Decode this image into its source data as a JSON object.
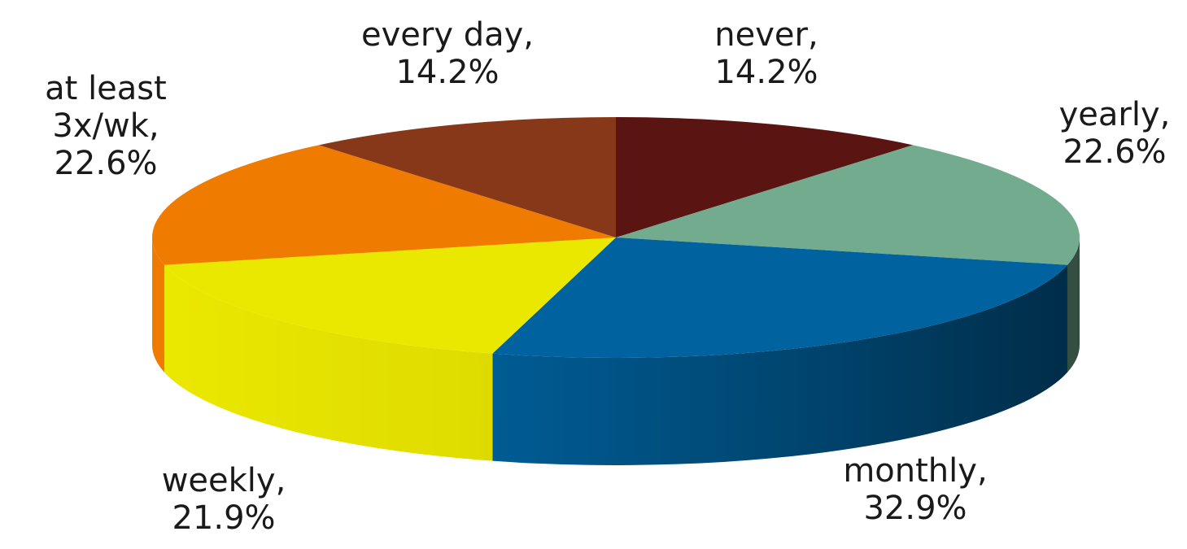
{
  "chart_data": {
    "type": "pie",
    "title": "",
    "legend": "none",
    "slices": [
      {
        "key": "never",
        "label_lines": [
          "never,",
          "14.2%"
        ],
        "value": 14.2,
        "color": "#5a1411"
      },
      {
        "key": "yearly",
        "label_lines": [
          "yearly,",
          "22.6%"
        ],
        "value": 22.6,
        "color": "#72ab8e"
      },
      {
        "key": "monthly",
        "label_lines": [
          "monthly,",
          "32.9%"
        ],
        "value": 32.9,
        "color": "#00629e"
      },
      {
        "key": "weekly",
        "label_lines": [
          "weekly,",
          "21.9%"
        ],
        "value": 21.9,
        "color": "#ebe800"
      },
      {
        "key": "at-least-3x",
        "label_lines": [
          "at least",
          "3x/wk,",
          "22.6%"
        ],
        "value": 22.6,
        "color": "#ef7b00"
      },
      {
        "key": "every-day",
        "label_lines": [
          "every day,",
          "14.2%"
        ],
        "value": 14.2,
        "color": "#873819"
      }
    ]
  }
}
